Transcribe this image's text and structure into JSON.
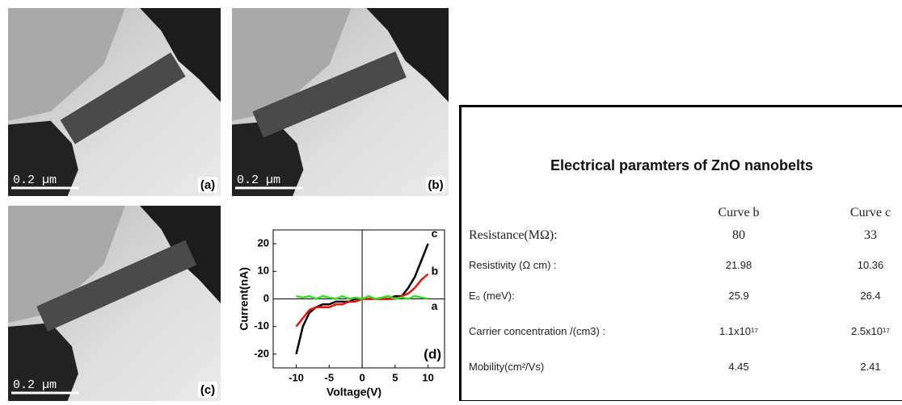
{
  "panels": [
    {
      "scale_bar": "0.2 µm",
      "label": "(a)"
    },
    {
      "scale_bar": "0.2 µm",
      "label": "(b)"
    },
    {
      "scale_bar": "0.2 µm",
      "label": "(c)"
    }
  ],
  "chart_data": {
    "type": "line",
    "panel_label": "(d)",
    "xlabel": "Voltage(V)",
    "ylabel": "Current(nA)",
    "x": [
      -10,
      -9,
      -8,
      -7,
      -6,
      -5,
      -4,
      -3,
      -2,
      -1,
      0,
      1,
      2,
      3,
      4,
      5,
      6,
      7,
      8,
      9,
      10
    ],
    "series": [
      {
        "name": "c",
        "color": "#000000",
        "values": [
          -20,
          -10,
          -5,
          -3,
          -2,
          -2,
          -1,
          -1,
          -1,
          0,
          0,
          0,
          0,
          0,
          0,
          1,
          1,
          4,
          8,
          14,
          20
        ]
      },
      {
        "name": "b",
        "color": "#e8140c",
        "values": [
          -10,
          -7,
          -4,
          -3,
          -3,
          -3,
          -2,
          -2,
          -1,
          -1,
          0,
          0,
          0,
          0,
          0,
          0,
          1,
          2,
          4,
          7,
          9
        ]
      },
      {
        "name": "a",
        "color": "#33dd22",
        "values": [
          1,
          0.5,
          1,
          0,
          1,
          0.5,
          0,
          1,
          0,
          0.5,
          0,
          1,
          0,
          0.5,
          1,
          0,
          0.5,
          0,
          1,
          0.5,
          0
        ]
      }
    ],
    "xlim": [
      -13.5,
      12.5
    ],
    "ylim": [
      -25,
      25
    ],
    "xticks": [
      -10,
      -5,
      0,
      5,
      10
    ],
    "yticks": [
      -20,
      -10,
      0,
      10,
      20
    ]
  },
  "table": {
    "title": "Electrical paramters of ZnO nanobelts",
    "headers": [
      "Curve b",
      "Curve c"
    ],
    "rows": [
      [
        "Resistance(MΩ):",
        "80",
        "33"
      ],
      [
        "Resistivity (Ω cm) :",
        "21.98",
        "10.36"
      ],
      [
        "E₀  (meV):",
        "25.9",
        "26.4"
      ],
      [
        "Carrier concentration /(cm3) :",
        "1.1x10¹⁷",
        "2.5x10¹⁷"
      ],
      [
        " Mobility(cm²/Vs)",
        "4.45",
        "2.41"
      ]
    ]
  }
}
